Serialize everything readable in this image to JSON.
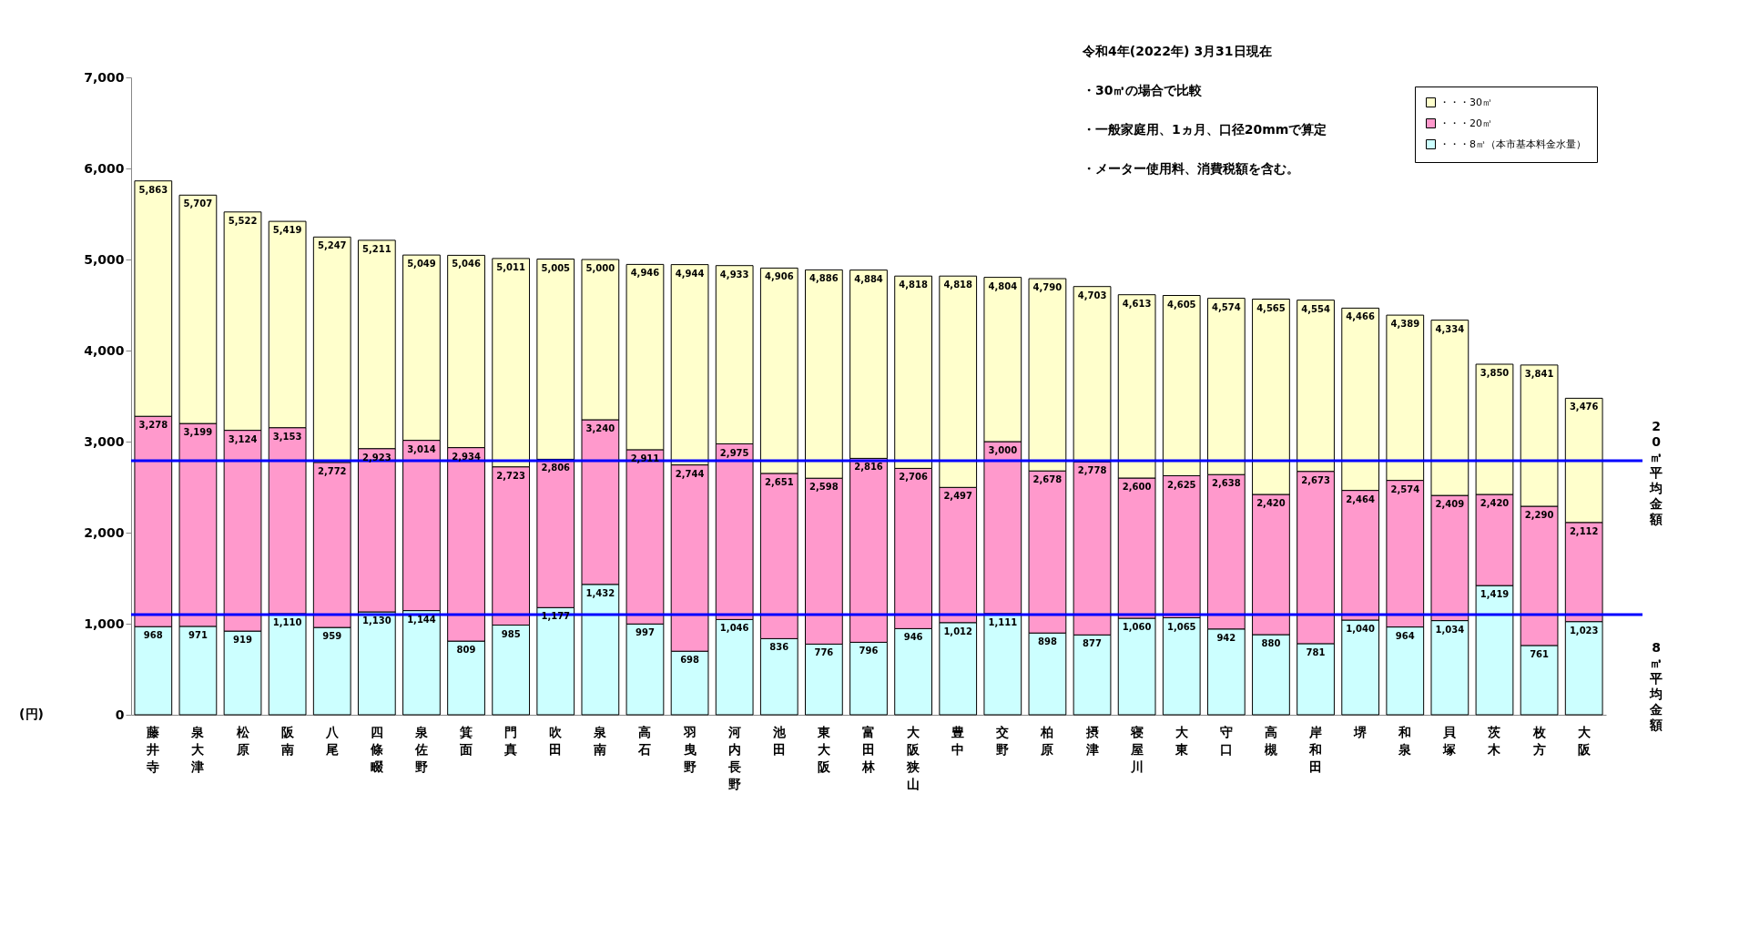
{
  "chart_data": {
    "type": "bar",
    "stacked": true,
    "ylabel": "(円)",
    "ylim": [
      0,
      7000
    ],
    "yticks": [
      0,
      {
        "value": 1000,
        "label": "1,000"
      },
      {
        "value": 2000,
        "label": "2,000"
      },
      {
        "value": 3000,
        "label": "3,000"
      },
      {
        "value": 4000,
        "label": "4,000"
      },
      {
        "value": 5000,
        "label": "5,000"
      },
      {
        "value": 6000,
        "label": "6,000"
      },
      {
        "value": 7000,
        "label": "7,000"
      }
    ],
    "grid": false,
    "legend": "top right",
    "categories": [
      "藤井寺",
      "泉大津",
      "松原",
      "阪南",
      "八尾",
      "四條畷",
      "泉佐野",
      "箕面",
      "門真",
      "吹田",
      "泉南",
      "高石",
      "羽曳野",
      "河内長野",
      "池田",
      "東大阪",
      "富田林",
      "大阪狭山",
      "豊中",
      "交野",
      "柏原",
      "摂津",
      "寝屋川",
      "大東",
      "守口",
      "高槻",
      "岸和田",
      "堺",
      "和泉",
      "貝塚",
      "茨木",
      "枚方",
      "大阪"
    ],
    "series": [
      {
        "name": "・・・8㎥（本市基本料金水量）",
        "color": "#ccffff",
        "values": [
          968,
          971,
          919,
          1110,
          959,
          1130,
          1144,
          809,
          985,
          1177,
          1432,
          997,
          698,
          1046,
          836,
          776,
          796,
          946,
          1012,
          1111,
          898,
          877,
          1060,
          1065,
          942,
          880,
          781,
          1040,
          964,
          1034,
          1419,
          761,
          1023
        ]
      },
      {
        "name": "・・・20㎥",
        "color": "#ff99cc",
        "values": [
          2310,
          2228,
          2205,
          2043,
          1813,
          1793,
          1870,
          2125,
          1738,
          1629,
          1808,
          1914,
          2046,
          1929,
          1815,
          1822,
          2020,
          1760,
          1485,
          1889,
          1780,
          1901,
          1540,
          1560,
          1696,
          1540,
          1892,
          1424,
          1610,
          1375,
          1001,
          1529,
          1089
        ]
      },
      {
        "name": "・・・30㎥",
        "color": "#ffffcc",
        "values": [
          2585,
          2508,
          2398,
          2266,
          2475,
          2288,
          2035,
          2112,
          2288,
          2199,
          1760,
          2035,
          2200,
          1958,
          2255,
          2288,
          2068,
          2112,
          2321,
          1804,
          2112,
          1925,
          2013,
          1980,
          1936,
          2145,
          1881,
          2002,
          1815,
          1925,
          1430,
          1551,
          1364
        ]
      }
    ],
    "totals": [
      "5,863",
      "5,707",
      "5,522",
      "5,419",
      "5,247",
      "5,211",
      "5,049",
      "5,046",
      "5,011",
      "5,005",
      "5,000",
      "4,946",
      "4,944",
      "4,933",
      "4,906",
      "4,886",
      "4,884",
      "4,818",
      "4,818",
      "4,804",
      "4,790",
      "4,703",
      "4,613",
      "4,605",
      "4,574",
      "4,565",
      "4,554",
      "4,466",
      "4,389",
      "4,334",
      "3,850",
      "3,841",
      "3,476"
    ],
    "ref_lines": [
      {
        "axis": "y",
        "value": 2790,
        "label": "20㎥平均金額",
        "color": "#0000ff"
      },
      {
        "axis": "y",
        "value": 1100,
        "label": "8㎥平均金額",
        "color": "#0000ff"
      }
    ],
    "annotations": [
      "令和4年(2022年) 3月31日現在",
      "・30㎥の場合で比較",
      "・一般家庭用、1ヵ月、口径20mmで算定",
      "・メーター使用料、消費税額を含む。",
      {
        "text": "968",
        "x": "藤井寺",
        "y": 968
      },
      {
        "text": "971",
        "x": "泉大津",
        "y": 971
      },
      {
        "text": "919",
        "x": "松原",
        "y": 919
      },
      {
        "text": "1,110",
        "x": "阪南",
        "y": 1110
      },
      {
        "text": "959",
        "x": "八尾",
        "y": 959
      },
      {
        "text": "1,130",
        "x": "四條畷",
        "y": 1130
      },
      {
        "text": "1,144",
        "x": "泉佐野",
        "y": 1144
      },
      {
        "text": "809",
        "x": "箕面",
        "y": 809
      },
      {
        "text": "985",
        "x": "門真",
        "y": 985
      },
      {
        "text": "1,177",
        "x": "吹田",
        "y": 1177
      },
      {
        "text": "1,432",
        "x": "泉南",
        "y": 1432
      },
      {
        "text": "997",
        "x": "高石",
        "y": 997
      },
      {
        "text": "698",
        "x": "羽曳野",
        "y": 698
      },
      {
        "text": "1,046",
        "x": "河内長野",
        "y": 1046
      },
      {
        "text": "836",
        "x": "池田",
        "y": 836
      },
      {
        "text": "776",
        "x": "東大阪",
        "y": 776
      },
      {
        "text": "796",
        "x": "富田林",
        "y": 796
      },
      {
        "text": "946",
        "x": "大阪狭山",
        "y": 946
      },
      {
        "text": "1,012",
        "x": "豊中",
        "y": 1012
      },
      {
        "text": "1,111",
        "x": "交野",
        "y": 1111
      },
      {
        "text": "898",
        "x": "柏原",
        "y": 898
      },
      {
        "text": "877",
        "x": "摂津",
        "y": 877
      },
      {
        "text": "1,060",
        "x": "寝屋川",
        "y": 1060
      },
      {
        "text": "1,065",
        "x": "大東",
        "y": 1065
      },
      {
        "text": "942",
        "x": "守口",
        "y": 942
      },
      {
        "text": "880",
        "x": "高槻",
        "y": 880
      },
      {
        "text": "781",
        "x": "岸和田",
        "y": 781
      },
      {
        "text": "1,040",
        "x": "堺",
        "y": 1040
      },
      {
        "text": "964",
        "x": "和泉",
        "y": 964
      },
      {
        "text": "1,034",
        "x": "貝塚",
        "y": 1034
      },
      {
        "text": "1,419",
        "x": "茨木",
        "y": 1419
      },
      {
        "text": "761",
        "x": "枚方",
        "y": 761
      },
      {
        "text": "1,023",
        "x": "大阪",
        "y": 1023
      },
      {
        "text": "3,278",
        "x": "藤井寺",
        "y": 3278
      },
      {
        "text": "3,199",
        "x": "泉大津",
        "y": 3199
      },
      {
        "text": "3,124",
        "x": "松原",
        "y": 3124
      },
      {
        "text": "3,153",
        "x": "阪南",
        "y": 3153
      },
      {
        "text": "2,772",
        "x": "八尾",
        "y": 2772
      },
      {
        "text": "2,923",
        "x": "四條畷",
        "y": 2923
      },
      {
        "text": "3,014",
        "x": "泉佐野",
        "y": 3014
      },
      {
        "text": "2,934",
        "x": "箕面",
        "y": 2934
      },
      {
        "text": "2,723",
        "x": "門真",
        "y": 2723
      },
      {
        "text": "2,806",
        "x": "吹田",
        "y": 2806
      },
      {
        "text": "3,240",
        "x": "泉南",
        "y": 3240
      },
      {
        "text": "2,911",
        "x": "高石",
        "y": 2911
      },
      {
        "text": "2,744",
        "x": "羽曳野",
        "y": 2744
      },
      {
        "text": "2,975",
        "x": "河内長野",
        "y": 2975
      },
      {
        "text": "2,651",
        "x": "池田",
        "y": 2651
      },
      {
        "text": "2,598",
        "x": "東大阪",
        "y": 2598
      },
      {
        "text": "2,816",
        "x": "富田林",
        "y": 2816
      },
      {
        "text": "2,706",
        "x": "大阪狭山",
        "y": 2706
      },
      {
        "text": "2,497",
        "x": "豊中",
        "y": 2497
      },
      {
        "text": "3,000",
        "x": "交野",
        "y": 3000
      },
      {
        "text": "2,678",
        "x": "柏原",
        "y": 2678
      },
      {
        "text": "2,778",
        "x": "摂津",
        "y": 2778
      },
      {
        "text": "2,600",
        "x": "寝屋川",
        "y": 2600
      },
      {
        "text": "2,625",
        "x": "大東",
        "y": 2625
      },
      {
        "text": "2,638",
        "x": "守口",
        "y": 2638
      },
      {
        "text": "2,420",
        "x": "高槻",
        "y": 2420
      },
      {
        "text": "2,673",
        "x": "岸和田",
        "y": 2673
      },
      {
        "text": "2,464",
        "x": "堺",
        "y": 2464
      },
      {
        "text": "2,574",
        "x": "和泉",
        "y": 2574
      },
      {
        "text": "2,409",
        "x": "貝塚",
        "y": 2409
      },
      {
        "text": "2,420",
        "x": "茨木",
        "y": 2420
      },
      {
        "text": "2,290",
        "x": "枚方",
        "y": 2290
      },
      {
        "text": "2,112",
        "x": "大阪",
        "y": 2112
      }
    ]
  }
}
